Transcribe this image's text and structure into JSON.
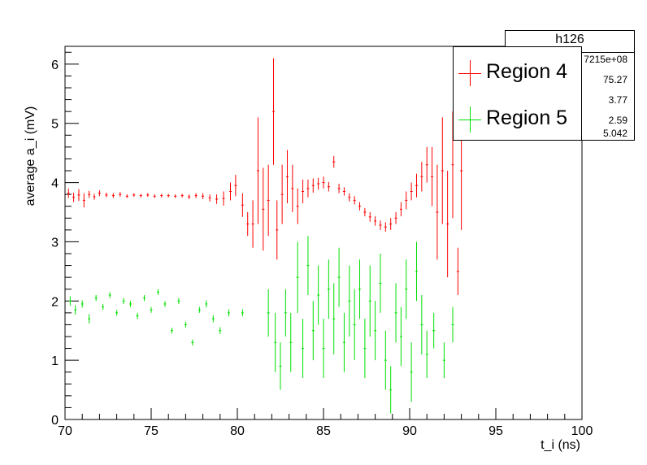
{
  "chart_data": {
    "type": "scatter",
    "title": "",
    "xlabel": "t_i (ns)",
    "ylabel": "average a_i (mV)",
    "xlim": [
      70,
      100
    ],
    "ylim": [
      0,
      6.3
    ],
    "x_ticks": [
      "70",
      "75",
      "80",
      "85",
      "90",
      "95",
      "100"
    ],
    "y_ticks": [
      "0",
      "1",
      "2",
      "3",
      "4",
      "5",
      "6"
    ],
    "series": [
      {
        "name": "Region 4",
        "color": "#ff0000",
        "points": [
          [
            70.2,
            3.82,
            0.08
          ],
          [
            70.5,
            3.75,
            0.08
          ],
          [
            70.8,
            3.79,
            0.1
          ],
          [
            71.1,
            3.7,
            0.12
          ],
          [
            71.4,
            3.8,
            0.06
          ],
          [
            71.7,
            3.76,
            0.05
          ],
          [
            72.0,
            3.82,
            0.05
          ],
          [
            72.4,
            3.79,
            0.04
          ],
          [
            72.8,
            3.78,
            0.04
          ],
          [
            73.2,
            3.8,
            0.04
          ],
          [
            73.6,
            3.77,
            0.03
          ],
          [
            74.0,
            3.79,
            0.03
          ],
          [
            74.4,
            3.78,
            0.03
          ],
          [
            74.8,
            3.79,
            0.03
          ],
          [
            75.2,
            3.77,
            0.03
          ],
          [
            75.6,
            3.78,
            0.03
          ],
          [
            76.0,
            3.78,
            0.03
          ],
          [
            76.4,
            3.77,
            0.03
          ],
          [
            76.8,
            3.78,
            0.03
          ],
          [
            77.2,
            3.76,
            0.04
          ],
          [
            77.6,
            3.78,
            0.04
          ],
          [
            78.0,
            3.77,
            0.05
          ],
          [
            78.4,
            3.74,
            0.06
          ],
          [
            78.8,
            3.72,
            0.08
          ],
          [
            79.2,
            3.73,
            0.12
          ],
          [
            79.6,
            3.85,
            0.15
          ],
          [
            79.9,
            3.95,
            0.18
          ],
          [
            80.3,
            3.62,
            0.2
          ],
          [
            80.6,
            3.3,
            0.2
          ],
          [
            80.9,
            3.3,
            0.4
          ],
          [
            81.2,
            4.2,
            0.9
          ],
          [
            81.5,
            3.55,
            0.7
          ],
          [
            81.8,
            3.7,
            0.6
          ],
          [
            82.1,
            5.2,
            0.9
          ],
          [
            82.3,
            3.2,
            0.5
          ],
          [
            82.6,
            3.8,
            0.5
          ],
          [
            82.9,
            4.1,
            0.45
          ],
          [
            83.2,
            3.9,
            0.4
          ],
          [
            83.5,
            3.6,
            0.3
          ],
          [
            83.8,
            3.85,
            0.2
          ],
          [
            84.1,
            3.9,
            0.15
          ],
          [
            84.4,
            3.95,
            0.12
          ],
          [
            84.7,
            3.98,
            0.1
          ],
          [
            85.0,
            4.0,
            0.1
          ],
          [
            85.3,
            3.93,
            0.08
          ],
          [
            85.6,
            4.35,
            0.1
          ],
          [
            85.9,
            3.9,
            0.08
          ],
          [
            86.2,
            3.85,
            0.07
          ],
          [
            86.5,
            3.75,
            0.07
          ],
          [
            86.8,
            3.7,
            0.07
          ],
          [
            87.1,
            3.6,
            0.07
          ],
          [
            87.4,
            3.5,
            0.07
          ],
          [
            87.7,
            3.42,
            0.08
          ],
          [
            88.0,
            3.35,
            0.08
          ],
          [
            88.3,
            3.28,
            0.08
          ],
          [
            88.6,
            3.25,
            0.08
          ],
          [
            88.9,
            3.3,
            0.1
          ],
          [
            89.2,
            3.4,
            0.1
          ],
          [
            89.5,
            3.55,
            0.12
          ],
          [
            89.8,
            3.7,
            0.15
          ],
          [
            90.1,
            3.85,
            0.15
          ],
          [
            90.4,
            3.95,
            0.2
          ],
          [
            90.7,
            4.1,
            0.25
          ],
          [
            91.0,
            4.3,
            0.3
          ],
          [
            91.3,
            4.1,
            0.5
          ],
          [
            91.6,
            3.5,
            0.8
          ],
          [
            91.9,
            4.2,
            0.9
          ],
          [
            92.2,
            3.3,
            0.9
          ],
          [
            92.5,
            4.3,
            0.9
          ],
          [
            92.8,
            2.5,
            0.4
          ],
          [
            93.0,
            4.2,
            1.0
          ]
        ]
      },
      {
        "name": "Region 5",
        "color": "#00e000",
        "points": [
          [
            70.3,
            2.0,
            0.08
          ],
          [
            70.6,
            1.85,
            0.08
          ],
          [
            71.0,
            1.95,
            0.06
          ],
          [
            71.4,
            1.7,
            0.08
          ],
          [
            71.8,
            2.05,
            0.05
          ],
          [
            72.2,
            1.9,
            0.05
          ],
          [
            72.6,
            2.1,
            0.05
          ],
          [
            73.0,
            1.8,
            0.05
          ],
          [
            73.4,
            2.0,
            0.05
          ],
          [
            73.8,
            1.95,
            0.05
          ],
          [
            74.2,
            1.75,
            0.05
          ],
          [
            74.6,
            2.05,
            0.05
          ],
          [
            75.0,
            1.85,
            0.05
          ],
          [
            75.4,
            2.15,
            0.05
          ],
          [
            75.8,
            1.95,
            0.05
          ],
          [
            76.2,
            1.5,
            0.05
          ],
          [
            76.6,
            2.0,
            0.05
          ],
          [
            77.0,
            1.6,
            0.05
          ],
          [
            77.4,
            1.3,
            0.05
          ],
          [
            77.8,
            1.85,
            0.05
          ],
          [
            78.2,
            1.95,
            0.06
          ],
          [
            78.6,
            1.7,
            0.06
          ],
          [
            79.0,
            1.5,
            0.06
          ],
          [
            79.5,
            1.8,
            0.06
          ],
          [
            80.3,
            1.8,
            0.06
          ],
          [
            81.8,
            1.8,
            0.4
          ],
          [
            82.2,
            1.3,
            0.5
          ],
          [
            82.5,
            0.9,
            0.4
          ],
          [
            82.8,
            1.8,
            0.4
          ],
          [
            83.1,
            1.3,
            0.5
          ],
          [
            83.5,
            2.4,
            0.6
          ],
          [
            83.8,
            1.2,
            0.5
          ],
          [
            84.1,
            2.6,
            0.5
          ],
          [
            84.4,
            1.5,
            0.5
          ],
          [
            84.7,
            2.1,
            0.5
          ],
          [
            85.0,
            1.2,
            0.5
          ],
          [
            85.3,
            2.2,
            0.5
          ],
          [
            85.6,
            1.7,
            0.6
          ],
          [
            85.9,
            2.4,
            0.5
          ],
          [
            86.2,
            1.3,
            0.5
          ],
          [
            86.5,
            2.0,
            0.6
          ],
          [
            86.8,
            1.6,
            0.6
          ],
          [
            87.1,
            2.2,
            0.5
          ],
          [
            87.4,
            1.2,
            0.5
          ],
          [
            87.7,
            2.0,
            0.6
          ],
          [
            88.0,
            1.5,
            0.5
          ],
          [
            88.3,
            2.3,
            0.5
          ],
          [
            88.6,
            1.0,
            0.5
          ],
          [
            88.9,
            0.5,
            0.4
          ],
          [
            89.2,
            1.8,
            0.5
          ],
          [
            89.5,
            1.4,
            0.5
          ],
          [
            89.8,
            2.2,
            0.5
          ],
          [
            90.1,
            0.8,
            0.5
          ],
          [
            90.4,
            2.5,
            0.5
          ],
          [
            90.7,
            1.6,
            0.5
          ],
          [
            91.0,
            1.1,
            0.4
          ],
          [
            91.4,
            1.5,
            0.3
          ],
          [
            92.0,
            1.0,
            0.3
          ],
          [
            92.5,
            1.6,
            0.3
          ]
        ]
      }
    ],
    "stats": {
      "name": "h126",
      "values": [
        "7215e+08",
        "75.27",
        "3.77",
        "2.59",
        "5.042"
      ]
    },
    "legend": {
      "placement": "top-right",
      "entries": [
        "Region 4",
        "Region 5"
      ]
    }
  }
}
